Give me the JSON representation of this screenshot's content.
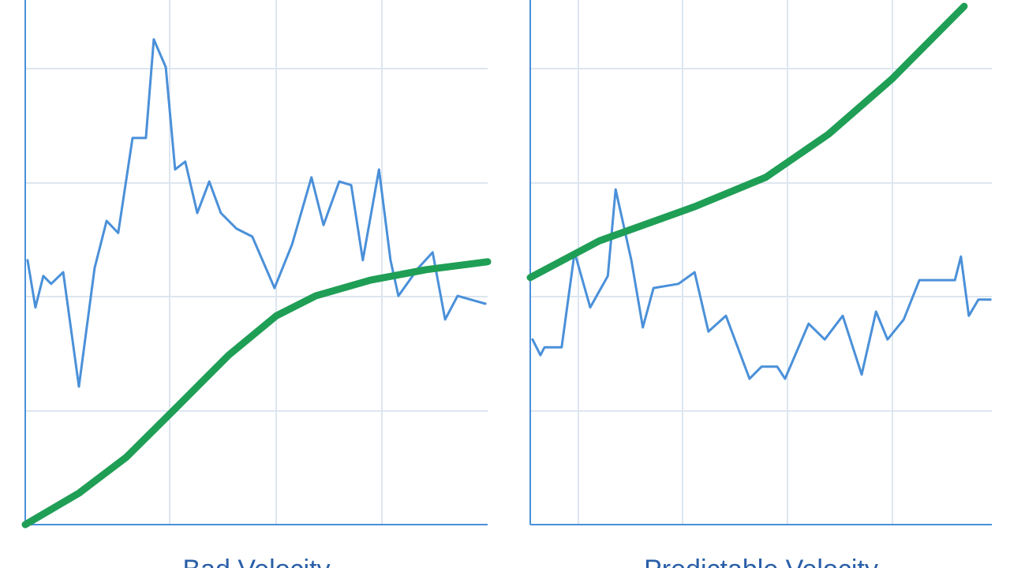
{
  "chart_data": [
    {
      "type": "line",
      "title": "Bad Velocity",
      "xlim": [
        0,
        100
      ],
      "ylim": [
        0,
        100
      ],
      "grid": true,
      "series": [
        {
          "color": "#4a90d9",
          "x": [
            0.5,
            2.2,
            3.9,
            5.6,
            8.2,
            11.6,
            15.0,
            17.6,
            20.1,
            23.2,
            26.1,
            27.8,
            30.4,
            32.4,
            34.6,
            37.2,
            39.8,
            42.3,
            45.7,
            49.1,
            53.9,
            57.7,
            61.9,
            64.5,
            67.9,
            70.5,
            73.0,
            76.5,
            79.0,
            80.7,
            85.0,
            88.1,
            90.8,
            93.5,
            99.5
          ],
          "values": [
            50.4,
            41.4,
            47.4,
            45.9,
            48.1,
            26.3,
            48.9,
            57.9,
            55.6,
            73.7,
            73.7,
            92.5,
            87.2,
            67.7,
            69.2,
            59.4,
            65.4,
            59.4,
            56.4,
            54.9,
            45.1,
            53.4,
            66.2,
            57.1,
            65.4,
            64.7,
            50.4,
            67.7,
            50.4,
            43.6,
            48.9,
            51.9,
            39.1,
            43.6,
            42.1
          ]
        },
        {
          "color": "#1f9e55",
          "x": [
            0,
            11.6,
            21.8,
            32.1,
            44.0,
            54.3,
            62.8,
            74.7,
            86.7,
            100
          ],
          "values": [
            0,
            6.0,
            12.8,
            21.8,
            32.3,
            39.8,
            43.6,
            46.6,
            48.6,
            50.1
          ]
        }
      ]
    },
    {
      "type": "line",
      "title": "Predictable Velocity",
      "xlim": [
        0,
        100
      ],
      "ylim": [
        0,
        100
      ],
      "grid": true,
      "series": [
        {
          "color": "#4a90d9",
          "x": [
            0.5,
            2.2,
            3.1,
            6.8,
            9.6,
            13.0,
            16.8,
            18.5,
            21.9,
            24.4,
            26.7,
            32.1,
            35.6,
            38.6,
            42.4,
            47.5,
            50.1,
            53.5,
            55.2,
            60.3,
            63.8,
            67.7,
            71.8,
            74.9,
            77.4,
            80.9,
            84.3,
            92.0,
            93.3,
            95.0,
            97.1,
            99.7
          ],
          "values": [
            35.3,
            32.3,
            33.8,
            33.8,
            51.9,
            41.4,
            47.4,
            63.9,
            50.4,
            37.6,
            45.1,
            45.9,
            48.1,
            36.8,
            39.8,
            27.8,
            30.1,
            30.1,
            27.8,
            38.3,
            35.3,
            39.8,
            28.6,
            40.6,
            35.3,
            39.1,
            46.6,
            46.6,
            51.1,
            39.8,
            42.9,
            42.9
          ]
        },
        {
          "color": "#1f9e55",
          "x": [
            0,
            15.0,
            35.6,
            51.0,
            64.6,
            78.3,
            94.0
          ],
          "values": [
            47.1,
            54.1,
            60.6,
            66.2,
            74.4,
            84.9,
            98.8
          ]
        }
      ]
    }
  ]
}
